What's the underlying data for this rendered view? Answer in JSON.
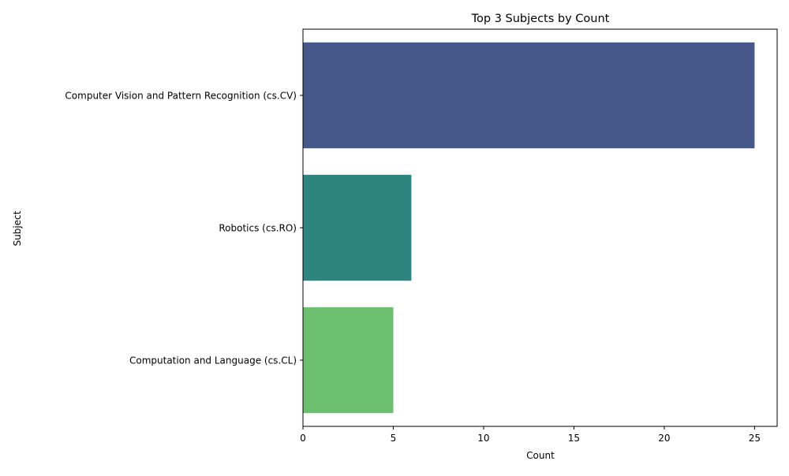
{
  "chart_data": {
    "type": "bar",
    "orientation": "horizontal",
    "title": "Top 3 Subjects by Count",
    "xlabel": "Count",
    "ylabel": "Subject",
    "categories": [
      "Computer Vision and Pattern Recognition (cs.CV)",
      "Robotics (cs.RO)",
      "Computation and Language (cs.CL)"
    ],
    "values": [
      25,
      6,
      5
    ],
    "colors": [
      "#46578a",
      "#2e8580",
      "#6cbf6e"
    ],
    "xlim": [
      0,
      26.25
    ],
    "xticks": [
      0,
      5,
      10,
      15,
      20,
      25
    ],
    "grid": false,
    "legend": "none"
  }
}
